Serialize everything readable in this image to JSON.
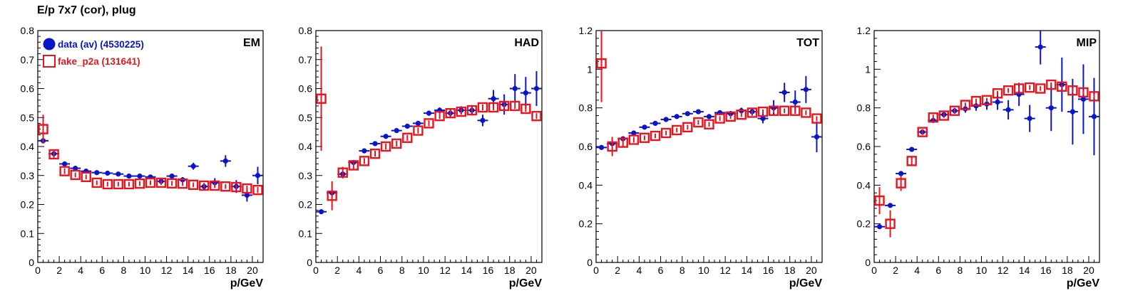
{
  "title": "E/p 7x7 (cor), plug",
  "colors": {
    "data": "#0a14c8",
    "fake": "#e8141e"
  },
  "chart_data": [
    {
      "type": "scatter",
      "panel_label": "EM",
      "xlabel": "p/GeV",
      "xlim": [
        0,
        21
      ],
      "ylim": [
        0,
        0.8
      ],
      "x_ticks": [
        0,
        2,
        4,
        6,
        8,
        10,
        12,
        14,
        16,
        18,
        20
      ],
      "y_ticks": [
        0,
        0.1,
        0.2,
        0.3,
        0.4,
        0.5,
        0.6,
        0.7,
        0.8
      ],
      "y_tick_labels": [
        "0",
        "0.1",
        "0.2",
        "0.3",
        "0.4",
        "0.5",
        "0.6",
        "0.7",
        "0.8"
      ],
      "legend": [
        {
          "text": "data (av) (4530225)",
          "series": "data",
          "marker": "filled-circle"
        },
        {
          "text": "fake_p2a (131641)",
          "series": "fake",
          "marker": "open-square"
        }
      ],
      "series": [
        {
          "name": "data (av) (4530225)",
          "key": "data",
          "x": [
            0.5,
            1.5,
            2.5,
            3.5,
            4.5,
            5.5,
            6.5,
            7.5,
            8.5,
            9.5,
            10.5,
            11.5,
            12.5,
            13.5,
            14.5,
            15.5,
            16.5,
            17.5,
            18.5,
            19.5,
            20.5
          ],
          "y": [
            0.42,
            0.375,
            0.34,
            0.325,
            0.315,
            0.31,
            0.308,
            0.305,
            0.298,
            0.298,
            0.295,
            0.28,
            0.298,
            0.285,
            0.332,
            0.262,
            0.275,
            0.35,
            0.262,
            0.232,
            0.3
          ],
          "err": [
            0.01,
            0.005,
            0.004,
            0.004,
            0.004,
            0.004,
            0.004,
            0.005,
            0.005,
            0.005,
            0.006,
            0.007,
            0.008,
            0.009,
            0.012,
            0.012,
            0.016,
            0.02,
            0.022,
            0.022,
            0.03
          ]
        },
        {
          "name": "fake_p2a (131641)",
          "key": "fake",
          "x": [
            0.5,
            1.5,
            2.5,
            3.5,
            4.5,
            5.5,
            6.5,
            7.5,
            8.5,
            9.5,
            10.5,
            11.5,
            12.5,
            13.5,
            14.5,
            15.5,
            16.5,
            17.5,
            18.5,
            19.5,
            20.5
          ],
          "y": [
            0.46,
            0.373,
            0.315,
            0.302,
            0.295,
            0.275,
            0.27,
            0.27,
            0.27,
            0.272,
            0.275,
            0.275,
            0.273,
            0.272,
            0.268,
            0.265,
            0.265,
            0.262,
            0.26,
            0.255,
            0.25
          ],
          "err": [
            0.05,
            0.015,
            0.01,
            0.008,
            0.008,
            0.008,
            0.008,
            0.008,
            0.008,
            0.008,
            0.008,
            0.008,
            0.008,
            0.008,
            0.008,
            0.008,
            0.008,
            0.008,
            0.008,
            0.01,
            0.01
          ]
        }
      ]
    },
    {
      "type": "scatter",
      "panel_label": "HAD",
      "xlabel": "p/GeV",
      "xlim": [
        0,
        21
      ],
      "ylim": [
        0,
        0.8
      ],
      "x_ticks": [
        0,
        2,
        4,
        6,
        8,
        10,
        12,
        14,
        16,
        18,
        20
      ],
      "y_ticks": [
        0,
        0.1,
        0.2,
        0.3,
        0.4,
        0.5,
        0.6,
        0.7,
        0.8
      ],
      "y_tick_labels": [
        "0",
        "0.1",
        "0.2",
        "0.3",
        "0.4",
        "0.5",
        "0.6",
        "0.7",
        "0.8"
      ],
      "series": [
        {
          "name": "data (av) (4530225)",
          "key": "data",
          "x": [
            0.5,
            1.5,
            2.5,
            3.5,
            4.5,
            5.5,
            6.5,
            7.5,
            8.5,
            9.5,
            10.5,
            11.5,
            12.5,
            13.5,
            14.5,
            15.5,
            16.5,
            17.5,
            18.5,
            19.5,
            20.5
          ],
          "y": [
            0.175,
            0.24,
            0.305,
            0.345,
            0.385,
            0.41,
            0.435,
            0.455,
            0.47,
            0.48,
            0.515,
            0.525,
            0.515,
            0.525,
            0.525,
            0.49,
            0.565,
            0.545,
            0.6,
            0.585,
            0.6
          ],
          "err": [
            0.005,
            0.006,
            0.006,
            0.006,
            0.006,
            0.006,
            0.006,
            0.007,
            0.007,
            0.008,
            0.009,
            0.01,
            0.012,
            0.014,
            0.018,
            0.02,
            0.03,
            0.035,
            0.05,
            0.055,
            0.06
          ]
        },
        {
          "name": "fake_p2a (131641)",
          "key": "fake",
          "x": [
            0.5,
            1.5,
            2.5,
            3.5,
            4.5,
            5.5,
            6.5,
            7.5,
            8.5,
            9.5,
            10.5,
            11.5,
            12.5,
            13.5,
            14.5,
            15.5,
            16.5,
            17.5,
            18.5,
            19.5,
            20.5
          ],
          "y": [
            0.565,
            0.23,
            0.31,
            0.335,
            0.35,
            0.375,
            0.4,
            0.41,
            0.43,
            0.455,
            0.48,
            0.505,
            0.515,
            0.52,
            0.525,
            0.535,
            0.535,
            0.54,
            0.54,
            0.53,
            0.505
          ],
          "err": [
            0.18,
            0.05,
            0.02,
            0.012,
            0.01,
            0.01,
            0.01,
            0.01,
            0.01,
            0.01,
            0.01,
            0.01,
            0.01,
            0.01,
            0.01,
            0.01,
            0.01,
            0.01,
            0.01,
            0.01,
            0.01
          ]
        }
      ]
    },
    {
      "type": "scatter",
      "panel_label": "TOT",
      "xlabel": "p/GeV",
      "xlim": [
        0,
        21
      ],
      "ylim": [
        0,
        1.2
      ],
      "x_ticks": [
        0,
        2,
        4,
        6,
        8,
        10,
        12,
        14,
        16,
        18,
        20
      ],
      "y_ticks": [
        0,
        0.2,
        0.4,
        0.6,
        0.8,
        1.0,
        1.2
      ],
      "y_tick_labels": [
        "0",
        "0.2",
        "0.4",
        "0.6",
        "0.8",
        "1",
        "1.2"
      ],
      "series": [
        {
          "name": "data (av) (4530225)",
          "key": "data",
          "x": [
            0.5,
            1.5,
            2.5,
            3.5,
            4.5,
            5.5,
            6.5,
            7.5,
            8.5,
            9.5,
            10.5,
            11.5,
            12.5,
            13.5,
            14.5,
            15.5,
            16.5,
            17.5,
            18.5,
            19.5,
            20.5
          ],
          "y": [
            0.595,
            0.615,
            0.64,
            0.67,
            0.7,
            0.72,
            0.74,
            0.755,
            0.77,
            0.78,
            0.755,
            0.775,
            0.77,
            0.785,
            0.78,
            0.745,
            0.8,
            0.88,
            0.83,
            0.895,
            0.65
          ],
          "err": [
            0.006,
            0.006,
            0.006,
            0.006,
            0.006,
            0.006,
            0.007,
            0.008,
            0.008,
            0.009,
            0.01,
            0.012,
            0.014,
            0.016,
            0.02,
            0.025,
            0.04,
            0.05,
            0.06,
            0.07,
            0.08
          ]
        },
        {
          "name": "fake_p2a (131641)",
          "key": "fake",
          "x": [
            0.5,
            1.5,
            2.5,
            3.5,
            4.5,
            5.5,
            6.5,
            7.5,
            8.5,
            9.5,
            10.5,
            11.5,
            12.5,
            13.5,
            14.5,
            15.5,
            16.5,
            17.5,
            18.5,
            19.5,
            20.5
          ],
          "y": [
            1.03,
            0.6,
            0.62,
            0.635,
            0.645,
            0.655,
            0.67,
            0.685,
            0.7,
            0.725,
            0.715,
            0.745,
            0.755,
            0.765,
            0.775,
            0.78,
            0.785,
            0.785,
            0.785,
            0.775,
            0.745
          ],
          "err": [
            0.2,
            0.05,
            0.02,
            0.015,
            0.012,
            0.012,
            0.012,
            0.012,
            0.012,
            0.012,
            0.012,
            0.012,
            0.012,
            0.012,
            0.012,
            0.012,
            0.012,
            0.012,
            0.012,
            0.012,
            0.012
          ]
        }
      ]
    },
    {
      "type": "scatter",
      "panel_label": "MIP",
      "xlabel": "p/GeV",
      "xlim": [
        0,
        21
      ],
      "ylim": [
        0,
        1.2
      ],
      "x_ticks": [
        0,
        2,
        4,
        6,
        8,
        10,
        12,
        14,
        16,
        18,
        20
      ],
      "y_ticks": [
        0,
        0.2,
        0.4,
        0.6,
        0.8,
        1.0,
        1.2
      ],
      "y_tick_labels": [
        "0",
        "0.2",
        "0.4",
        "0.6",
        "0.8",
        "1",
        "1.2"
      ],
      "series": [
        {
          "name": "data (av) (4530225)",
          "key": "data",
          "x": [
            0.5,
            1.5,
            2.5,
            3.5,
            4.5,
            5.5,
            6.5,
            7.5,
            8.5,
            9.5,
            10.5,
            11.5,
            12.5,
            13.5,
            14.5,
            15.5,
            16.5,
            17.5,
            18.5,
            19.5,
            20.5
          ],
          "y": [
            0.185,
            0.295,
            0.46,
            0.585,
            0.675,
            0.735,
            0.765,
            0.785,
            0.795,
            0.81,
            0.82,
            0.83,
            0.79,
            0.87,
            0.745,
            1.115,
            0.8,
            0.92,
            0.78,
            0.845,
            0.755
          ],
          "err": [
            0.006,
            0.006,
            0.008,
            0.008,
            0.008,
            0.01,
            0.012,
            0.015,
            0.02,
            0.025,
            0.03,
            0.04,
            0.05,
            0.06,
            0.07,
            0.09,
            0.12,
            0.14,
            0.17,
            0.18,
            0.2
          ]
        },
        {
          "name": "fake_p2a (131641)",
          "key": "fake",
          "x": [
            0.5,
            1.5,
            2.5,
            3.5,
            4.5,
            5.5,
            6.5,
            7.5,
            8.5,
            9.5,
            10.5,
            11.5,
            12.5,
            13.5,
            14.5,
            15.5,
            16.5,
            17.5,
            18.5,
            19.5,
            20.5
          ],
          "y": [
            0.32,
            0.2,
            0.41,
            0.525,
            0.675,
            0.75,
            0.76,
            0.785,
            0.815,
            0.835,
            0.84,
            0.875,
            0.89,
            0.9,
            0.905,
            0.9,
            0.92,
            0.91,
            0.89,
            0.88,
            0.86
          ],
          "err": [
            0.07,
            0.07,
            0.04,
            0.02,
            0.015,
            0.015,
            0.012,
            0.012,
            0.012,
            0.012,
            0.012,
            0.012,
            0.012,
            0.012,
            0.012,
            0.012,
            0.012,
            0.012,
            0.012,
            0.012,
            0.012
          ]
        }
      ]
    }
  ]
}
